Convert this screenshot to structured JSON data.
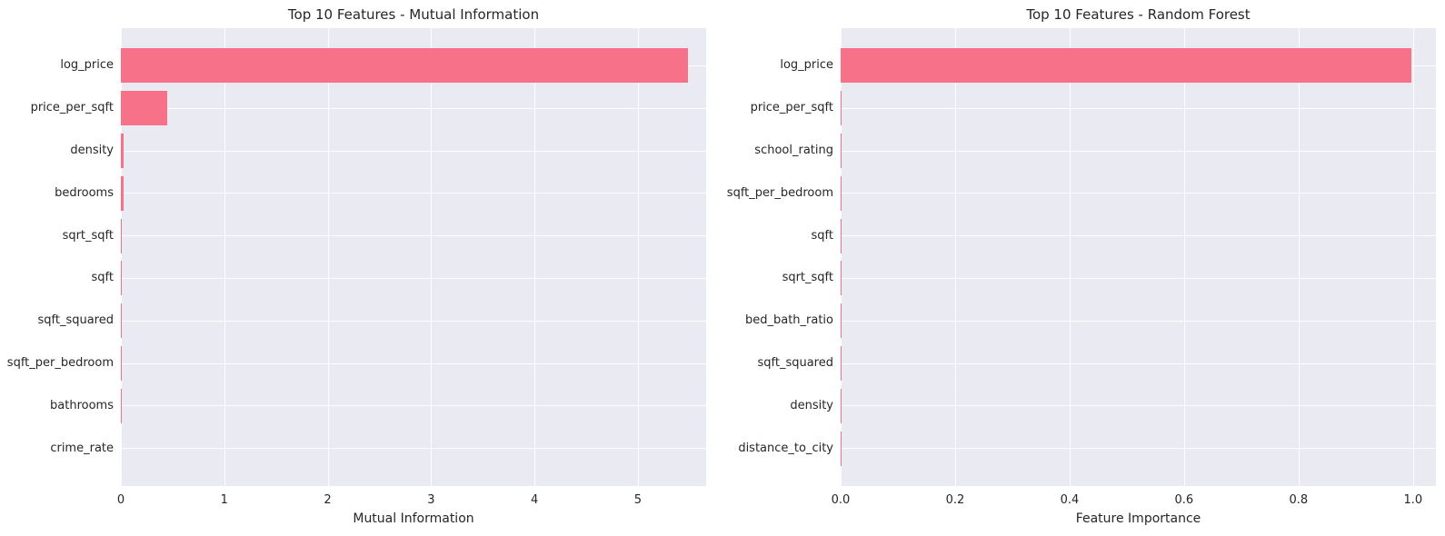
{
  "style": {
    "bar_color": "#f77189",
    "axes_background": "#eaeaf2",
    "grid_color": "#ffffff",
    "figure_background": "#ffffff",
    "text_color": "#262626"
  },
  "chart_data": [
    {
      "type": "bar",
      "orientation": "horizontal",
      "title": "Top 10 Features - Mutual Information",
      "xlabel": "Mutual Information",
      "ylabel": "",
      "grid": true,
      "legend": false,
      "categories": [
        "log_price",
        "price_per_sqft",
        "density",
        "bedrooms",
        "sqrt_sqft",
        "sqft",
        "sqft_squared",
        "sqft_per_bedroom",
        "bathrooms",
        "crime_rate"
      ],
      "values": [
        5.48,
        0.45,
        0.03,
        0.026,
        0.013,
        0.012,
        0.011,
        0.01,
        0.001,
        0.0005
      ],
      "xlim": [
        0,
        5.66
      ],
      "xticks": [
        0,
        1,
        2,
        3,
        4,
        5
      ],
      "xtick_labels": [
        "0",
        "1",
        "2",
        "3",
        "4",
        "5"
      ],
      "bar_color": "#f77189"
    },
    {
      "type": "bar",
      "orientation": "horizontal",
      "title": "Top 10 Features - Random Forest",
      "xlabel": "Feature Importance",
      "ylabel": "",
      "grid": true,
      "legend": false,
      "categories": [
        "log_price",
        "price_per_sqft",
        "school_rating",
        "sqft_per_bedroom",
        "sqft",
        "sqrt_sqft",
        "bed_bath_ratio",
        "sqft_squared",
        "density",
        "distance_to_city"
      ],
      "values": [
        0.997,
        0.002,
        0.0015,
        0.0015,
        0.0015,
        0.0015,
        0.0015,
        0.0012,
        0.001,
        0.001
      ],
      "xlim": [
        0,
        1.04
      ],
      "xticks": [
        0.0,
        0.2,
        0.4,
        0.6,
        0.8,
        1.0
      ],
      "xtick_labels": [
        "0.0",
        "0.2",
        "0.4",
        "0.6",
        "0.8",
        "1.0"
      ],
      "bar_color": "#f77189"
    }
  ]
}
